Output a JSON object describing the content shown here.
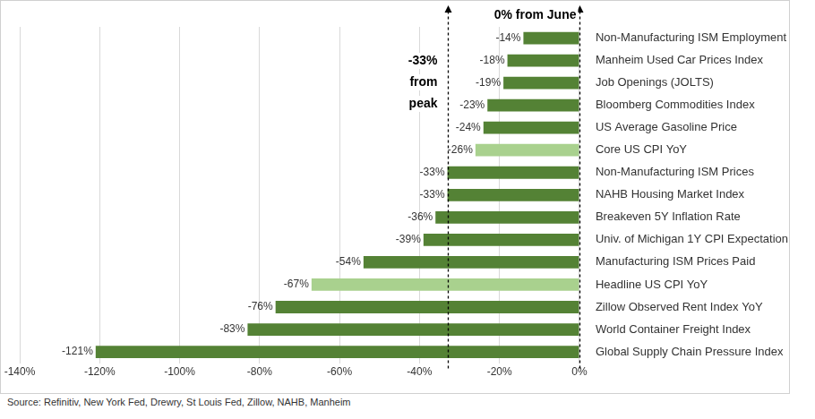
{
  "chart_data": {
    "type": "bar",
    "orientation": "horizontal",
    "categories": [
      "Non-Manufacturing ISM Employment",
      "Manheim Used Car Prices Index",
      "Job Openings (JOLTS)",
      "Bloomberg Commodities Index",
      "US Average Gasoline Price",
      "Core US CPI YoY",
      "Non-Manufacturing ISM Prices",
      "NAHB Housing Market Index",
      "Breakeven 5Y Inflation Rate",
      "Univ. of Michigan 1Y CPI Expectation",
      "Manufacturing ISM Prices Paid",
      "Headline US CPI YoY",
      "Zillow Observed Rent Index YoY",
      "World Container Freight Index",
      "Global Supply Chain Pressure Index"
    ],
    "values": [
      -14,
      -18,
      -19,
      -23,
      -24,
      -26,
      -33,
      -33,
      -36,
      -39,
      -54,
      -67,
      -76,
      -83,
      -121
    ],
    "value_labels": [
      "-14%",
      "-18%",
      "-19%",
      "-23%",
      "-24%",
      "-26%",
      "-33%",
      "-33%",
      "-36%",
      "-39%",
      "-54%",
      "-67%",
      "-76%",
      "-83%",
      "-121%"
    ],
    "colors": [
      "#548235",
      "#548235",
      "#548235",
      "#548235",
      "#548235",
      "#a9d18e",
      "#548235",
      "#548235",
      "#548235",
      "#548235",
      "#548235",
      "#a9d18e",
      "#548235",
      "#548235",
      "#548235"
    ],
    "xlim": [
      -140,
      0
    ],
    "xticks": [
      {
        "value": -140,
        "label": "-140%"
      },
      {
        "value": -120,
        "label": "-120%"
      },
      {
        "value": -100,
        "label": "-100%"
      },
      {
        "value": -80,
        "label": "-80%"
      },
      {
        "value": -60,
        "label": "-60%"
      },
      {
        "value": -40,
        "label": "-40%"
      },
      {
        "value": -20,
        "label": "-20%"
      },
      {
        "value": 0,
        "label": "0%"
      }
    ],
    "grid": true,
    "data_labels": true,
    "annotations": [
      {
        "label": "0% from June",
        "value": 0
      },
      {
        "label": "-33% from peak",
        "value": -33
      }
    ],
    "source": "Source: Refinitiv, New York Fed, Drewry, St Louis Fed, Zillow, NAHB, Manheim"
  }
}
